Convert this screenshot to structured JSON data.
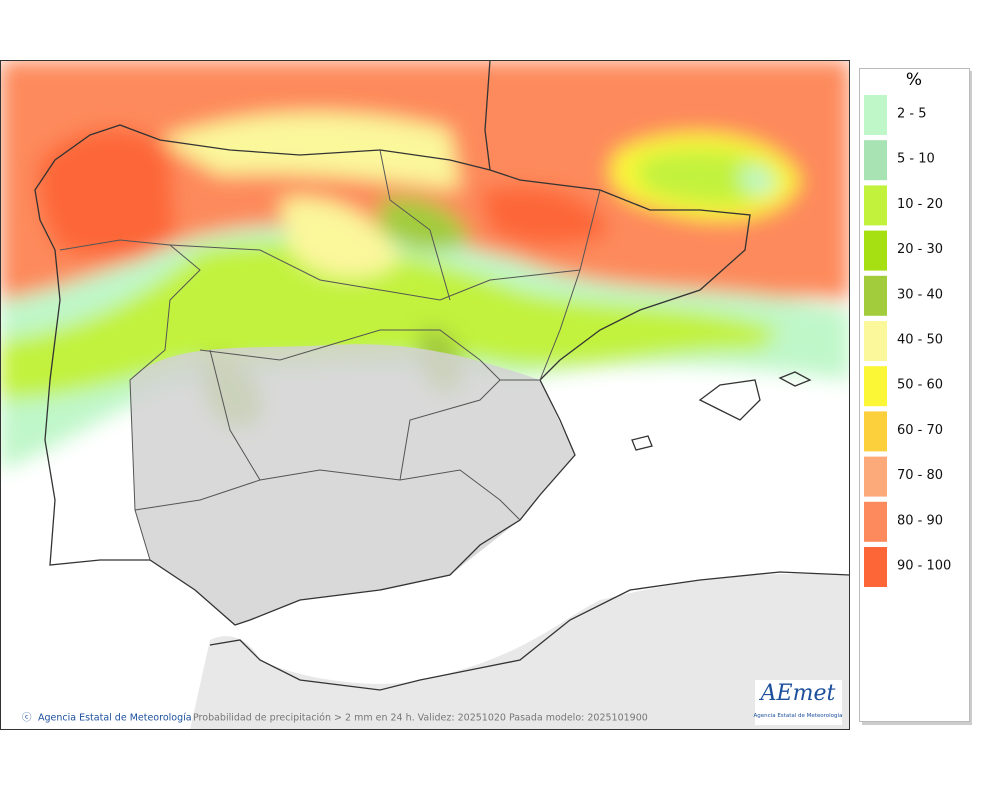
{
  "legend": {
    "title": "%",
    "items": [
      {
        "label": "2 - 5",
        "color": "#c0f7c9"
      },
      {
        "label": "5 - 10",
        "color": "#a7e3b3"
      },
      {
        "label": "10 - 20",
        "color": "#c2f23c"
      },
      {
        "label": "20 - 30",
        "color": "#a6e013"
      },
      {
        "label": "30 - 40",
        "color": "#a3cc3d"
      },
      {
        "label": "40 - 50",
        "color": "#fbf79b"
      },
      {
        "label": "50 - 60",
        "color": "#fbf737"
      },
      {
        "label": "60 - 70",
        "color": "#fccf3c"
      },
      {
        "label": "70 - 80",
        "color": "#fdaa7b"
      },
      {
        "label": "80 - 90",
        "color": "#fd8a5c"
      },
      {
        "label": "90 - 100",
        "color": "#fd6637"
      }
    ]
  },
  "footer": {
    "copyright": "ⓒ",
    "agency": "Agencia Estatal de Meteorología",
    "caption": "Probabilidad de precipitación > 2 mm en 24 h. Validez: 20251020 Pasada modelo: 2025101900"
  },
  "logo": {
    "name": "AEmet",
    "subtitle": "Agencia Estatal de Meteorología"
  }
}
